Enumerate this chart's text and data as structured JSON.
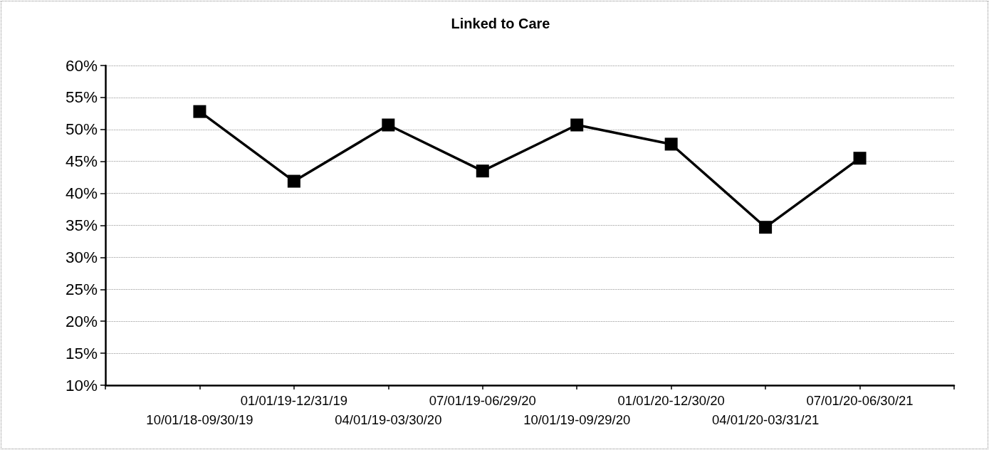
{
  "chart_data": {
    "type": "line",
    "title": "Linked to Care",
    "categories": [
      null,
      "10/01/18-09/30/19",
      "01/01/19-12/31/19",
      "04/01/19-03/30/20",
      "07/01/19-06/29/20",
      "10/01/19-09/29/20",
      "01/01/20-12/30/20",
      "04/01/20-03/31/21",
      "07/01/20-06/30/21",
      null
    ],
    "values": [
      null,
      52.8,
      41.9,
      50.7,
      43.5,
      50.7,
      47.7,
      34.7,
      45.5,
      null
    ],
    "color": "#000000",
    "ylim": [
      10,
      60
    ],
    "yticks": [
      {
        "value": 10,
        "label": "10%"
      },
      {
        "value": 15,
        "label": "15%"
      },
      {
        "value": 20,
        "label": "20%"
      },
      {
        "value": 25,
        "label": "25%"
      },
      {
        "value": 30,
        "label": "30%"
      },
      {
        "value": 35,
        "label": "35%"
      },
      {
        "value": 40,
        "label": "40%"
      },
      {
        "value": 45,
        "label": "45%"
      },
      {
        "value": 50,
        "label": "50%"
      },
      {
        "value": 55,
        "label": "55%"
      },
      {
        "value": 60,
        "label": "60%"
      }
    ],
    "grid": "y",
    "marker": "square",
    "line_style": "solid"
  }
}
